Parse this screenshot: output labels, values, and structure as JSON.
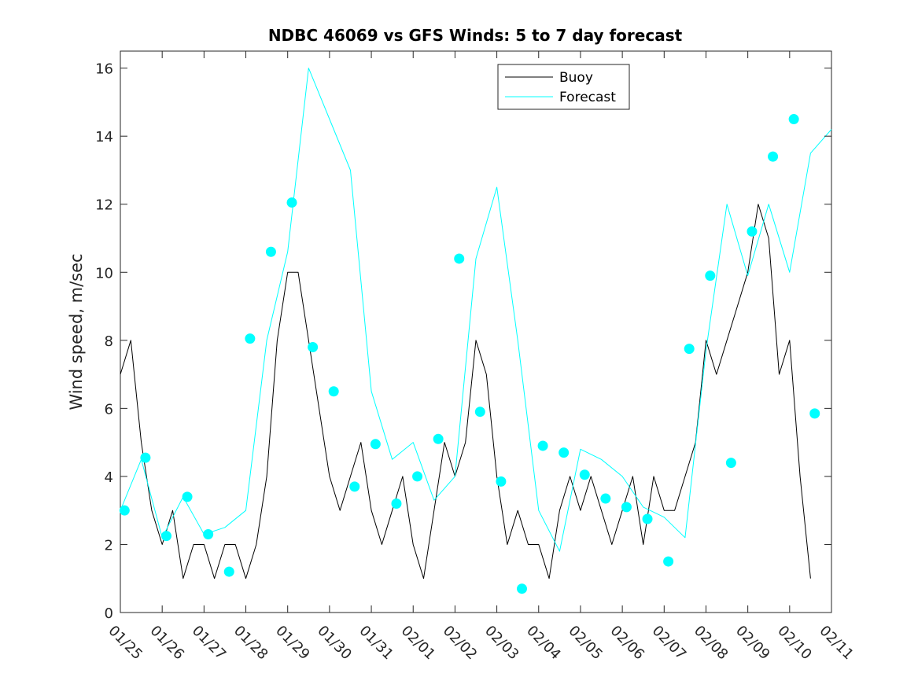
{
  "chart_data": {
    "type": "line",
    "title": "NDBC 46069 vs GFS Winds: 5 to 7 day forecast",
    "xlabel": "",
    "ylabel": "Wind speed, m/sec",
    "ylim": [
      0,
      16.5
    ],
    "xlim": [
      0,
      17
    ],
    "yticks": [
      0,
      2,
      4,
      6,
      8,
      10,
      12,
      14,
      16
    ],
    "xtick_labels": [
      "01/25",
      "01/26",
      "01/27",
      "01/28",
      "01/29",
      "01/30",
      "01/31",
      "02/01",
      "02/02",
      "02/03",
      "02/04",
      "02/05",
      "02/06",
      "02/07",
      "02/08",
      "02/09",
      "02/10",
      "02/11"
    ],
    "legend": {
      "position": "top-center",
      "entries": [
        "Buoy",
        "Forecast"
      ]
    },
    "colors": {
      "buoy": "#000000",
      "forecast": "#00ffff",
      "markers": "#00ffff"
    },
    "series": [
      {
        "name": "Buoy",
        "x": [
          0.0,
          0.25,
          0.5,
          0.75,
          1.0,
          1.25,
          1.5,
          1.75,
          2.0,
          2.25,
          2.5,
          2.75,
          3.0,
          3.25,
          3.5,
          3.75,
          4.0,
          4.25,
          4.5,
          4.75,
          5.0,
          5.25,
          5.5,
          5.75,
          6.0,
          6.25,
          6.5,
          6.75,
          7.0,
          7.25,
          7.5,
          7.75,
          8.0,
          8.25,
          8.5,
          8.75,
          9.0,
          9.25,
          9.5,
          9.75,
          10.0,
          10.25,
          10.5,
          10.75,
          11.0,
          11.25,
          11.5,
          11.75,
          12.0,
          12.25,
          12.5,
          12.75,
          13.0,
          13.25,
          13.5,
          13.75,
          14.0,
          14.25,
          14.5,
          14.75,
          15.0,
          15.25,
          15.5,
          15.75,
          16.0,
          16.25,
          16.5
        ],
        "values": [
          7,
          8,
          5,
          3,
          2,
          3,
          1,
          2,
          2,
          1,
          2,
          2,
          1,
          2,
          4,
          8,
          10,
          10,
          8,
          6,
          4,
          3,
          4,
          5,
          3,
          2,
          3,
          4,
          2,
          1,
          3,
          5,
          4,
          5,
          8,
          7,
          4,
          2,
          3,
          2,
          2,
          1,
          3,
          4,
          3,
          4,
          3,
          2,
          3,
          4,
          2,
          4,
          3,
          3,
          4,
          5,
          8,
          7,
          8,
          9,
          10,
          12,
          11,
          7,
          8,
          4,
          1
        ]
      },
      {
        "name": "Forecast",
        "x": [
          0.0,
          0.5,
          1.0,
          1.5,
          2.0,
          2.5,
          3.0,
          3.5,
          4.0,
          4.5,
          5.0,
          5.5,
          6.0,
          6.5,
          7.0,
          7.5,
          8.0,
          8.5,
          9.0,
          9.5,
          10.0,
          10.5,
          11.0,
          11.5,
          12.0,
          12.5,
          13.0,
          13.5,
          14.0,
          14.5,
          15.0,
          15.5,
          16.0,
          16.5,
          17.0
        ],
        "values": [
          3,
          4.5,
          2.2,
          3.4,
          2.3,
          2.5,
          3.0,
          8.0,
          10.6,
          16.0,
          14.5,
          13.0,
          6.5,
          4.5,
          5.0,
          3.3,
          4.0,
          10.4,
          12.5,
          8.0,
          3.0,
          1.8,
          4.8,
          4.5,
          4.0,
          3.1,
          2.8,
          2.2,
          7.7,
          12.0,
          9.9,
          12.0,
          10.0,
          13.5,
          14.2
        ]
      }
    ],
    "forecast_points": {
      "x": [
        0.1,
        0.6,
        1.1,
        1.6,
        2.1,
        2.6,
        3.1,
        3.6,
        4.1,
        4.6,
        5.1,
        5.6,
        6.1,
        6.6,
        7.1,
        7.6,
        8.1,
        8.6,
        9.1,
        9.6,
        10.1,
        10.6,
        11.1,
        11.6,
        12.1,
        12.6,
        13.1,
        13.6,
        14.1,
        14.6,
        15.1,
        15.6,
        16.1,
        16.6
      ],
      "values": [
        3.0,
        4.55,
        2.25,
        3.4,
        2.3,
        1.2,
        8.05,
        10.6,
        12.05,
        7.8,
        6.5,
        3.7,
        4.95,
        3.2,
        4.0,
        5.1,
        10.4,
        5.9,
        3.85,
        0.7,
        4.9,
        4.7,
        4.05,
        3.35,
        3.1,
        2.75,
        1.5,
        7.75,
        9.9,
        4.4,
        11.2,
        13.4,
        14.5,
        5.85
      ]
    }
  }
}
